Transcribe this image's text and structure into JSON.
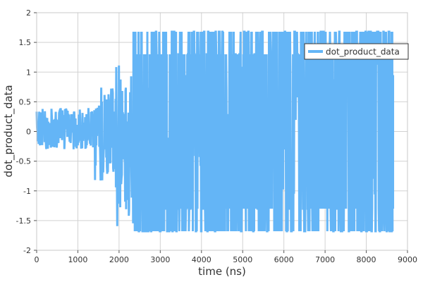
{
  "chart_data": {
    "type": "line",
    "xlabel": "time (ns)",
    "ylabel": "dot_product_data",
    "xlim": [
      0,
      9000
    ],
    "ylim": [
      -2,
      2
    ],
    "x_ticks": [
      "0",
      "1000",
      "2000",
      "3000",
      "4000",
      "5000",
      "6000",
      "7000",
      "8000",
      "9000"
    ],
    "y_ticks": [
      "-2",
      "-1.5",
      "-1",
      "-0.5",
      "0",
      "0.5",
      "1",
      "1.5",
      "2"
    ],
    "grid": true,
    "legend_position": "top-right",
    "series": [
      {
        "name": "dot_product_data",
        "color": "#64b5f6",
        "line_width": 3,
        "x_range": [
          0,
          8650
        ],
        "phases": [
          {
            "x_start": 0,
            "x_end": 1400,
            "min": -0.3,
            "max": 0.4
          },
          {
            "x_start": 1400,
            "x_end": 1900,
            "min": -0.85,
            "max": 0.75
          },
          {
            "x_start": 1900,
            "x_end": 2350,
            "min": -1.6,
            "max": 1.2
          },
          {
            "x_start": 2350,
            "x_end": 8650,
            "min": -1.68,
            "max": 1.68
          }
        ]
      }
    ]
  }
}
